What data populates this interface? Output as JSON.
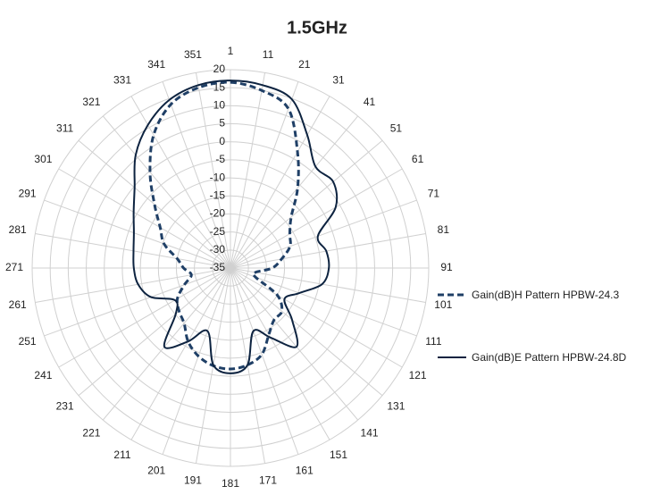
{
  "chart_data": {
    "type": "polar",
    "title": "1.5GHz",
    "categories": [
      "1",
      "11",
      "21",
      "31",
      "41",
      "51",
      "61",
      "71",
      "81",
      "91",
      "101",
      "111",
      "121",
      "131",
      "141",
      "151",
      "161",
      "171",
      "181",
      "191",
      "201",
      "211",
      "221",
      "231",
      "241",
      "251",
      "261",
      "271",
      "281",
      "291",
      "301",
      "311",
      "321",
      "331",
      "341",
      "351"
    ],
    "ylim": [
      -35,
      20
    ],
    "yticks": [
      -35,
      -30,
      -25,
      -20,
      -15,
      -10,
      -5,
      0,
      5,
      10,
      15,
      20
    ],
    "grid": true,
    "legend": "right",
    "series": [
      {
        "name": "Gain(dB)H Pattern HPBW-24.3",
        "color": "#1f3f66",
        "dash": true,
        "values": [
          16.5,
          15,
          12,
          2.2,
          -6,
          -13,
          -16,
          -17.4,
          -20.6,
          -23.4,
          -28,
          -27.6,
          -20,
          -16.4,
          -16.2,
          -13.7,
          -9.5,
          -7.7,
          -7,
          -7.5,
          -9,
          -11.5,
          -15,
          -16.4,
          -18,
          -21.4,
          -24,
          -22,
          -20,
          -15.4,
          -12.5,
          -7.5,
          -0.3,
          7.6,
          13.3,
          15.8
        ]
      },
      {
        "name": "Gain(dB)E Pattern HPBW-24.8D",
        "color": "#0d2340",
        "dash": false,
        "values": [
          17,
          16.5,
          14.8,
          7.6,
          1.7,
          2.2,
          -1.3,
          -9.2,
          -8,
          -7.7,
          -9.2,
          -14.7,
          -17.7,
          -12.7,
          -6.5,
          -12.7,
          -16.4,
          -7.7,
          -5.8,
          -7.7,
          -16.4,
          -11.5,
          -6.5,
          -15.2,
          -17.2,
          -11.5,
          -9,
          -8.2,
          -7.7,
          -6.5,
          -4,
          -0.3,
          5.9,
          10.8,
          14.6,
          16.5
        ]
      }
    ]
  }
}
